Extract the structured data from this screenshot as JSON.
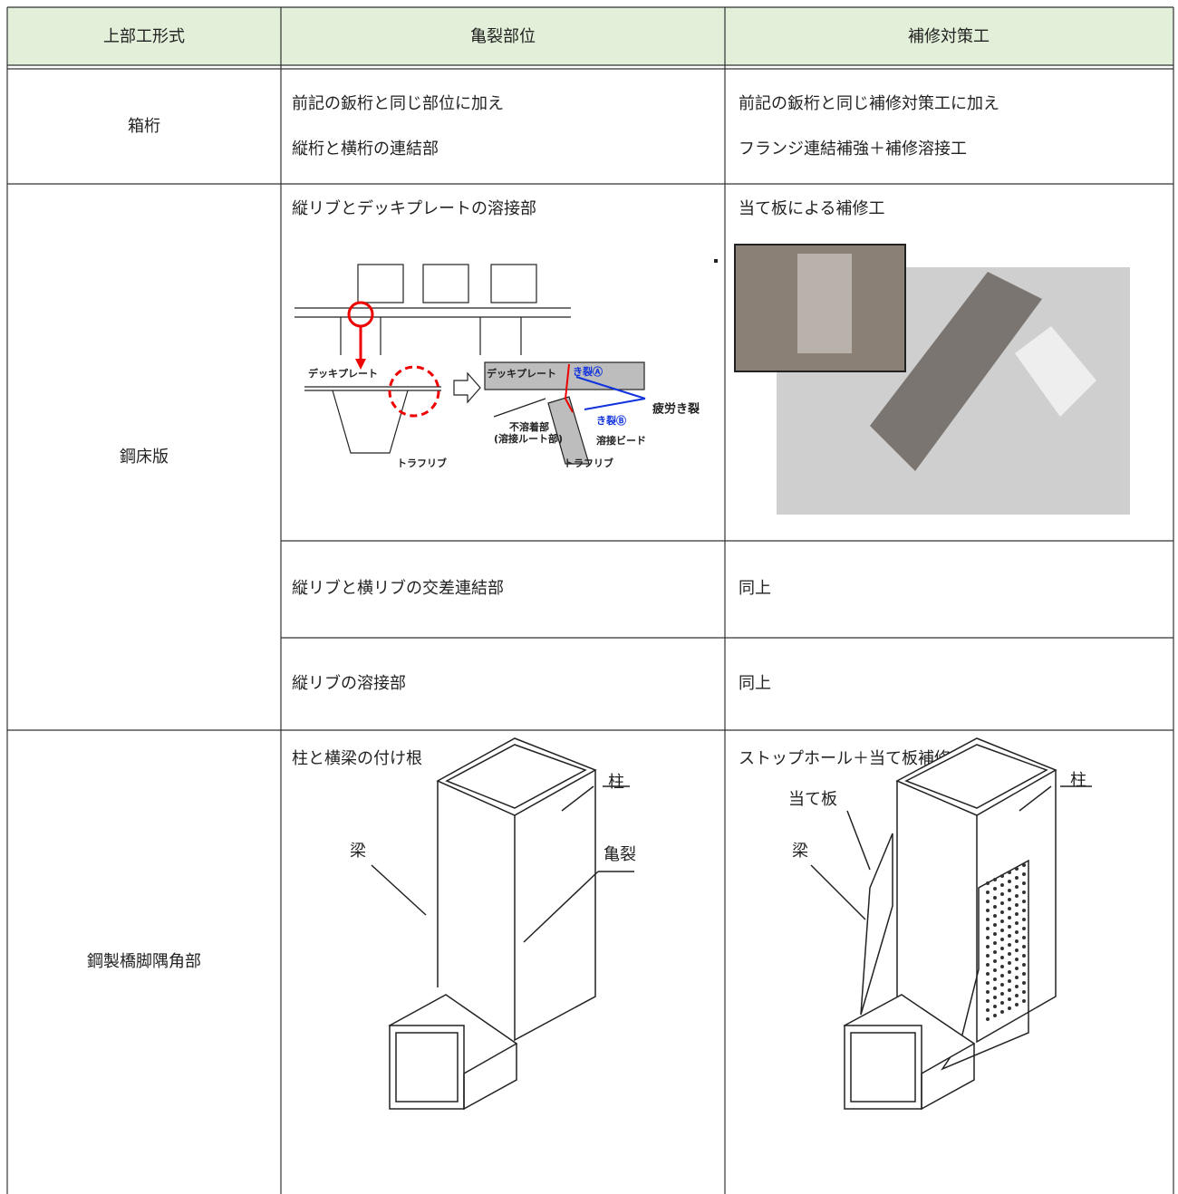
{
  "header": [
    "上部工形式",
    "亀裂部位",
    "補修対策工"
  ],
  "sections": [
    {
      "type": "箱桁",
      "rows": [
        {
          "crack": [
            "前記の鈑桁と同じ部位に加え",
            "縦桁と横桁の連結部"
          ],
          "repair": [
            "前記の鈑桁と同じ補修対策工に加え",
            "フランジ連結補強＋補修溶接工"
          ]
        }
      ]
    },
    {
      "type": "鋼床版",
      "rows": [
        {
          "crack": [
            "縦リブとデッキプレートの溶接部"
          ],
          "repair": [
            "当て板による補修工"
          ]
        },
        {
          "crack": [
            "縦リブと横リブの交差連結部"
          ],
          "repair": [
            "同上"
          ]
        },
        {
          "crack": [
            "縦リブの溶接部"
          ],
          "repair": [
            "同上"
          ]
        }
      ]
    },
    {
      "type": "鋼製橋脚隅角部",
      "rows": [
        {
          "crack": [
            "柱と横梁の付け根"
          ],
          "repair": [
            "ストップホール＋当て板補修工"
          ]
        }
      ]
    }
  ],
  "figures": {
    "deck_detail": {
      "labels": [
        "デッキプレート",
        "デッキプレート",
        "き裂Ⓐ",
        "疲労き裂",
        "き裂Ⓑ",
        "不溶着部",
        "(溶接ルート部)",
        "溶接ビード",
        "トラフリブ",
        "トラフリブ"
      ]
    },
    "pier_crack": {
      "labels": [
        "柱",
        "梁",
        "亀裂"
      ]
    },
    "pier_repair": {
      "labels": [
        "柱",
        "当て板",
        "梁"
      ]
    }
  }
}
